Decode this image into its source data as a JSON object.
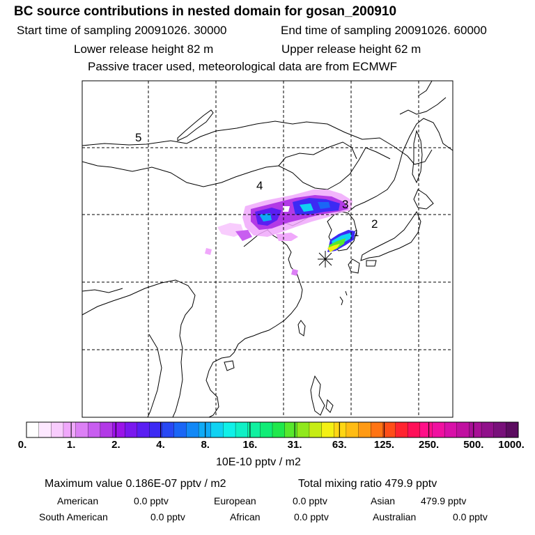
{
  "header": {
    "title": "BC  source contributions in nested domain for gosan_200910",
    "start_time": "Start time of sampling 20091026. 30000",
    "end_time": "End time of sampling 20091026. 60000",
    "lower_height": "Lower release height   82 m",
    "upper_height": "Upper release height   62 m",
    "tracer_note": "Passive tracer used, meteorological data are from ECMWF"
  },
  "map": {
    "region_labels": [
      "5",
      "4",
      "3",
      "2",
      "1"
    ],
    "colors": {
      "coastline": "#000000",
      "grid": "#000000",
      "receptor_marker": "#000000"
    }
  },
  "colorbar": {
    "tick_labels": [
      "0.",
      "1.",
      "2.",
      "4.",
      "8.",
      "16.",
      "31.",
      "63.",
      "125.",
      "250.",
      "500.",
      "1000."
    ],
    "colors": [
      "#ffffff",
      "#fde8ff",
      "#f8ccfd",
      "#f0a8fb",
      "#dc80f5",
      "#c85ef0",
      "#b23ae6",
      "#9a14e8",
      "#7a18ee",
      "#5a1ef2",
      "#3c2af4",
      "#2848f4",
      "#1a66f6",
      "#1288f6",
      "#10aaf6",
      "#10d2f2",
      "#10f0e8",
      "#10f0c6",
      "#10f0a0",
      "#10ec76",
      "#20e84c",
      "#58e82c",
      "#90e81c",
      "#c6ec14",
      "#f4f014",
      "#ffd614",
      "#ffbc14",
      "#ff9a14",
      "#ff7414",
      "#ff4e18",
      "#ff2430",
      "#ff1058",
      "#ff1088",
      "#f010a0",
      "#d810a8",
      "#c010a0",
      "#a81096",
      "#90108a",
      "#78107a",
      "#5c0c60"
    ],
    "units": "10E-10 pptv / m2"
  },
  "summary": {
    "max_value": "Maximum value  0.186E-07 pptv / m2",
    "total_mixing": "Total mixing ratio      479.9 pptv",
    "regions": [
      {
        "label": "American",
        "value": "0.0 pptv"
      },
      {
        "label": "European",
        "value": "0.0 pptv"
      },
      {
        "label": "Asian",
        "value": "479.9 pptv"
      },
      {
        "label": "South American",
        "value": "0.0 pptv"
      },
      {
        "label": "African",
        "value": "0.0 pptv"
      },
      {
        "label": "Australian",
        "value": "0.0 pptv"
      }
    ]
  }
}
